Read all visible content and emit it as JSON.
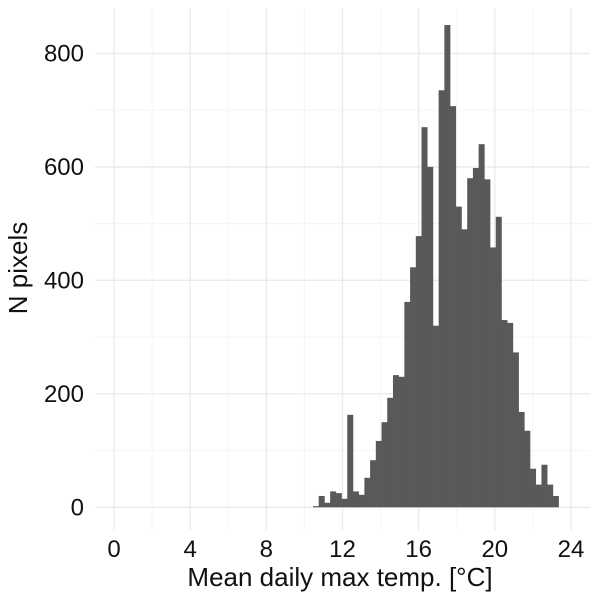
{
  "chart_data": {
    "type": "bar",
    "title": "",
    "xlabel": "Mean daily max temp. [°C]",
    "ylabel": "N pixels",
    "xlim": [
      -1,
      25
    ],
    "ylim": [
      -40,
      880
    ],
    "x_ticks": [
      0,
      4,
      8,
      12,
      16,
      20,
      24
    ],
    "y_ticks": [
      0,
      200,
      400,
      600,
      800
    ],
    "grid": true,
    "legend": "none",
    "bin_width": 0.3,
    "series": [
      {
        "bar_color": "#595959",
        "x": [
          10.6,
          10.9,
          11.2,
          11.5,
          11.8,
          12.1,
          12.4,
          12.7,
          13.0,
          13.3,
          13.6,
          13.9,
          14.2,
          14.5,
          14.8,
          15.1,
          15.4,
          15.7,
          16.0,
          16.3,
          16.6,
          16.9,
          17.2,
          17.5,
          17.8,
          18.1,
          18.4,
          18.7,
          19.0,
          19.3,
          19.6,
          19.9,
          20.2,
          20.5,
          20.8,
          21.1,
          21.4,
          21.7,
          22.0,
          22.3,
          22.6,
          22.9,
          23.2
        ],
        "y": [
          2,
          20,
          8,
          28,
          25,
          15,
          163,
          28,
          22,
          52,
          83,
          117,
          150,
          193,
          233,
          230,
          362,
          423,
          478,
          670,
          600,
          320,
          735,
          850,
          707,
          530,
          490,
          580,
          598,
          640,
          578,
          458,
          512,
          330,
          325,
          273,
          168,
          135,
          68,
          40,
          75,
          40,
          20
        ]
      }
    ],
    "colors": {
      "bars": "#595959",
      "grid_major": "#ebebeb",
      "grid_minor": "#f5f5f5",
      "background": "#ffffff",
      "text": "#111111"
    }
  }
}
